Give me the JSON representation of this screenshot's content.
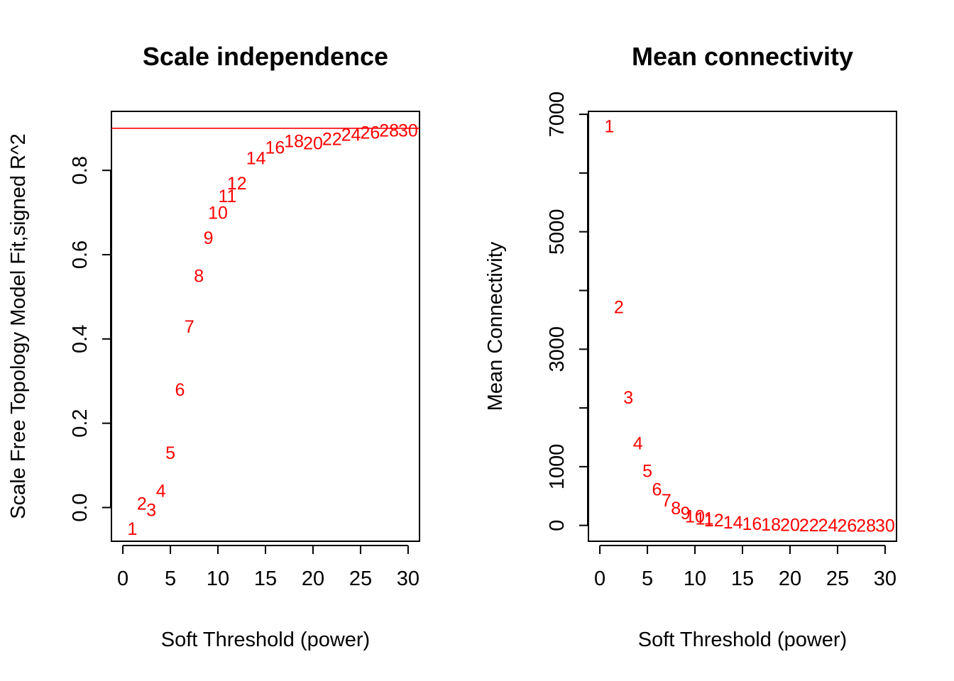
{
  "chart_data": [
    {
      "type": "scatter",
      "title": "Scale independence",
      "xlabel": "Soft Threshold (power)",
      "ylabel": "Scale Free Topology Model Fit,signed R^2",
      "xlim": [
        0,
        30
      ],
      "ylim": [
        -0.08,
        0.94
      ],
      "xticks": [
        "0",
        "5",
        "10",
        "15",
        "20",
        "25",
        "30"
      ],
      "xtick_values": [
        0,
        5,
        10,
        15,
        20,
        25,
        30
      ],
      "yticks": [
        "0.0",
        "0.2",
        "0.4",
        "0.6",
        "0.8"
      ],
      "ytick_values": [
        0.0,
        0.2,
        0.4,
        0.6,
        0.8
      ],
      "point_color": "#ff0000",
      "hline": 0.9,
      "hline_color": "#ff0000",
      "points": [
        {
          "x": 1,
          "y": -0.05,
          "label": "1"
        },
        {
          "x": 2,
          "y": 0.01,
          "label": "2"
        },
        {
          "x": 3,
          "y": -0.005,
          "label": "3"
        },
        {
          "x": 4,
          "y": 0.04,
          "label": "4"
        },
        {
          "x": 5,
          "y": 0.13,
          "label": "5"
        },
        {
          "x": 6,
          "y": 0.28,
          "label": "6"
        },
        {
          "x": 7,
          "y": 0.43,
          "label": "7"
        },
        {
          "x": 8,
          "y": 0.55,
          "label": "8"
        },
        {
          "x": 9,
          "y": 0.64,
          "label": "9"
        },
        {
          "x": 10,
          "y": 0.7,
          "label": "10"
        },
        {
          "x": 11,
          "y": 0.74,
          "label": "11"
        },
        {
          "x": 12,
          "y": 0.77,
          "label": "12"
        },
        {
          "x": 14,
          "y": 0.83,
          "label": "14"
        },
        {
          "x": 16,
          "y": 0.855,
          "label": "16"
        },
        {
          "x": 18,
          "y": 0.87,
          "label": "18"
        },
        {
          "x": 20,
          "y": 0.865,
          "label": "20"
        },
        {
          "x": 22,
          "y": 0.875,
          "label": "22"
        },
        {
          "x": 24,
          "y": 0.885,
          "label": "24"
        },
        {
          "x": 26,
          "y": 0.89,
          "label": "26"
        },
        {
          "x": 28,
          "y": 0.895,
          "label": "28"
        },
        {
          "x": 30,
          "y": 0.895,
          "label": "30"
        }
      ]
    },
    {
      "type": "scatter",
      "title": "Mean connectivity",
      "xlabel": "Soft Threshold (power)",
      "ylabel": "Mean Connectivity",
      "xlim": [
        0,
        30
      ],
      "ylim": [
        -270,
        7050
      ],
      "xticks": [
        "0",
        "5",
        "10",
        "15",
        "20",
        "25",
        "30"
      ],
      "xtick_values": [
        0,
        5,
        10,
        15,
        20,
        25,
        30
      ],
      "yticks": [
        "0",
        "1000",
        "3000",
        "5000",
        "7000"
      ],
      "ytick_values": [
        0,
        1000,
        2000,
        3000,
        4000,
        5000,
        6000,
        7000
      ],
      "ytick_labeled": [
        0,
        1000,
        3000,
        5000,
        7000
      ],
      "point_color": "#ff0000",
      "points": [
        {
          "x": 1,
          "y": 6800,
          "label": "1"
        },
        {
          "x": 2,
          "y": 3720,
          "label": "2"
        },
        {
          "x": 3,
          "y": 2180,
          "label": "3"
        },
        {
          "x": 4,
          "y": 1400,
          "label": "4"
        },
        {
          "x": 5,
          "y": 930,
          "label": "5"
        },
        {
          "x": 6,
          "y": 620,
          "label": "6"
        },
        {
          "x": 7,
          "y": 430,
          "label": "7"
        },
        {
          "x": 8,
          "y": 300,
          "label": "8"
        },
        {
          "x": 9,
          "y": 215,
          "label": "9"
        },
        {
          "x": 10,
          "y": 160,
          "label": "10"
        },
        {
          "x": 11,
          "y": 120,
          "label": "11"
        },
        {
          "x": 12,
          "y": 90,
          "label": "12"
        },
        {
          "x": 14,
          "y": 55,
          "label": "14"
        },
        {
          "x": 16,
          "y": 35,
          "label": "16"
        },
        {
          "x": 18,
          "y": 22,
          "label": "18"
        },
        {
          "x": 20,
          "y": 14,
          "label": "20"
        },
        {
          "x": 22,
          "y": 9,
          "label": "22"
        },
        {
          "x": 24,
          "y": 6,
          "label": "24"
        },
        {
          "x": 26,
          "y": 4,
          "label": "26"
        },
        {
          "x": 28,
          "y": 3,
          "label": "28"
        },
        {
          "x": 30,
          "y": 2,
          "label": "30"
        }
      ]
    }
  ]
}
